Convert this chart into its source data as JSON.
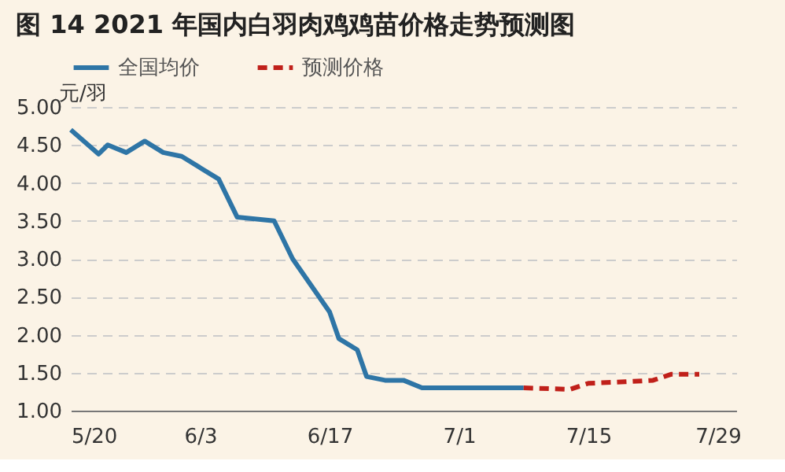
{
  "chart_data": {
    "type": "line",
    "title": "图 14   2021 年国内白羽肉鸡鸡苗价格走势预测图",
    "ylabel": "元/羽",
    "xlim": [
      "2021-05-20",
      "2021-07-31"
    ],
    "xticks": [
      {
        "value": "2021-05-20",
        "label": "5/20"
      },
      {
        "value": "2021-06-03",
        "label": "6/3"
      },
      {
        "value": "2021-06-17",
        "label": "6/17"
      },
      {
        "value": "2021-07-01",
        "label": "7/1"
      },
      {
        "value": "2021-07-15",
        "label": "7/15"
      },
      {
        "value": "2021-07-29",
        "label": "7/29"
      }
    ],
    "ylim": [
      1,
      5
    ],
    "yticks": [
      {
        "value": 1,
        "label": "1.00"
      },
      {
        "value": 1.5,
        "label": "1.50"
      },
      {
        "value": 2,
        "label": "2.00"
      },
      {
        "value": 2.5,
        "label": "2.50"
      },
      {
        "value": 3,
        "label": "3.00"
      },
      {
        "value": 3.5,
        "label": "3.50"
      },
      {
        "value": 4,
        "label": "4.00"
      },
      {
        "value": 4.5,
        "label": "4.50"
      },
      {
        "value": 5,
        "label": "5.00"
      }
    ],
    "grid": "y",
    "legend": "top",
    "marker": "none",
    "series": [
      {
        "name": "全国均价",
        "color": "#2e75a6",
        "line_style": "solid",
        "x": [
          "2021-05-20",
          "2021-05-23",
          "2021-05-24",
          "2021-05-26",
          "2021-05-28",
          "2021-05-30",
          "2021-06-01",
          "2021-06-03",
          "2021-06-05",
          "2021-06-07",
          "2021-06-11",
          "2021-06-13",
          "2021-06-17",
          "2021-06-18",
          "2021-06-20",
          "2021-06-21",
          "2021-06-23",
          "2021-06-25",
          "2021-06-27",
          "2021-07-08"
        ],
        "values": [
          4.7,
          4.38,
          4.5,
          4.4,
          4.55,
          4.4,
          4.35,
          4.2,
          4.05,
          3.55,
          3.5,
          3.0,
          2.3,
          1.95,
          1.8,
          1.45,
          1.4,
          1.4,
          1.3,
          1.3
        ]
      },
      {
        "name": "预测价格",
        "color": "#c0201a",
        "line_style": "dashed",
        "x": [
          "2021-07-08",
          "2021-07-13",
          "2021-07-15",
          "2021-07-19",
          "2021-07-22",
          "2021-07-24",
          "2021-07-27"
        ],
        "values": [
          1.3,
          1.28,
          1.36,
          1.38,
          1.4,
          1.48,
          1.48
        ]
      }
    ]
  }
}
